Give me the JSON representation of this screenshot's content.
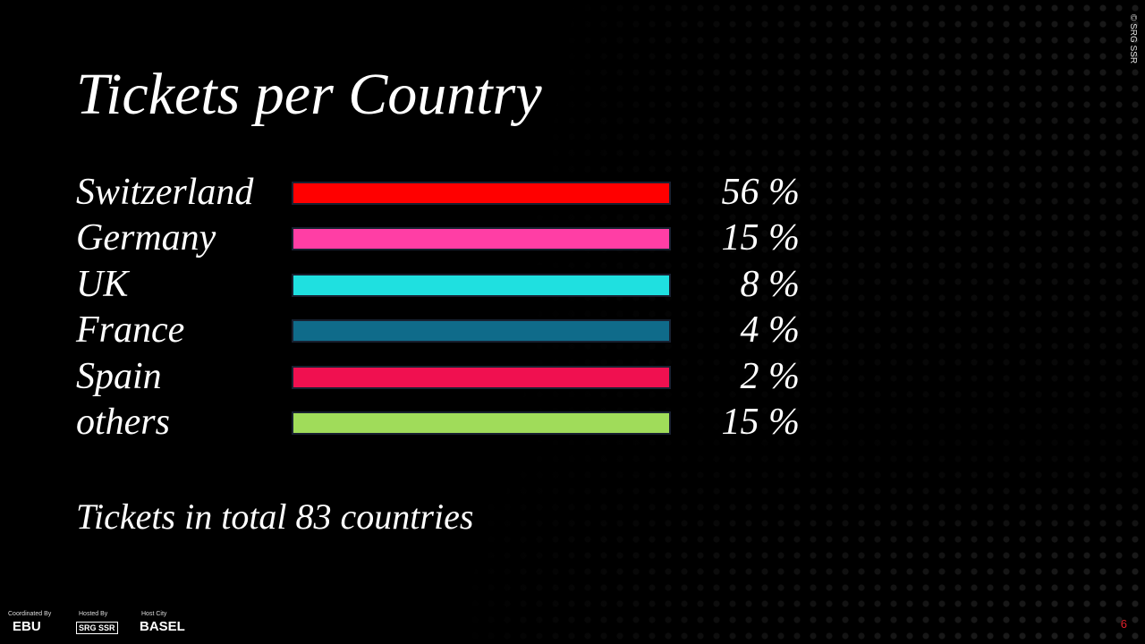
{
  "title": "Tickets per Country",
  "rows": [
    {
      "label": "Switzerland",
      "value": "56 %",
      "color": "#ff0000"
    },
    {
      "label": "Germany",
      "value": "15 %",
      "color": "#ff3ea5"
    },
    {
      "label": "UK",
      "value": "8 %",
      "color": "#1fe0e0"
    },
    {
      "label": "France",
      "value": "4 %",
      "color": "#0f6b8a"
    },
    {
      "label": "Spain",
      "value": "2 %",
      "color": "#f01050"
    },
    {
      "label": "others",
      "value": "15 %",
      "color": "#a0dc5a"
    }
  ],
  "note": "Tickets in total 83 countries",
  "footer": {
    "coordinated_label": "Coordinated By",
    "coordinated": "EBU",
    "hosted_label": "Hosted By",
    "hosted": "SRG SSR",
    "city_label": "Host City",
    "city": "BASEL",
    "page_number": "6",
    "copyright": "© SRG SSR"
  }
}
